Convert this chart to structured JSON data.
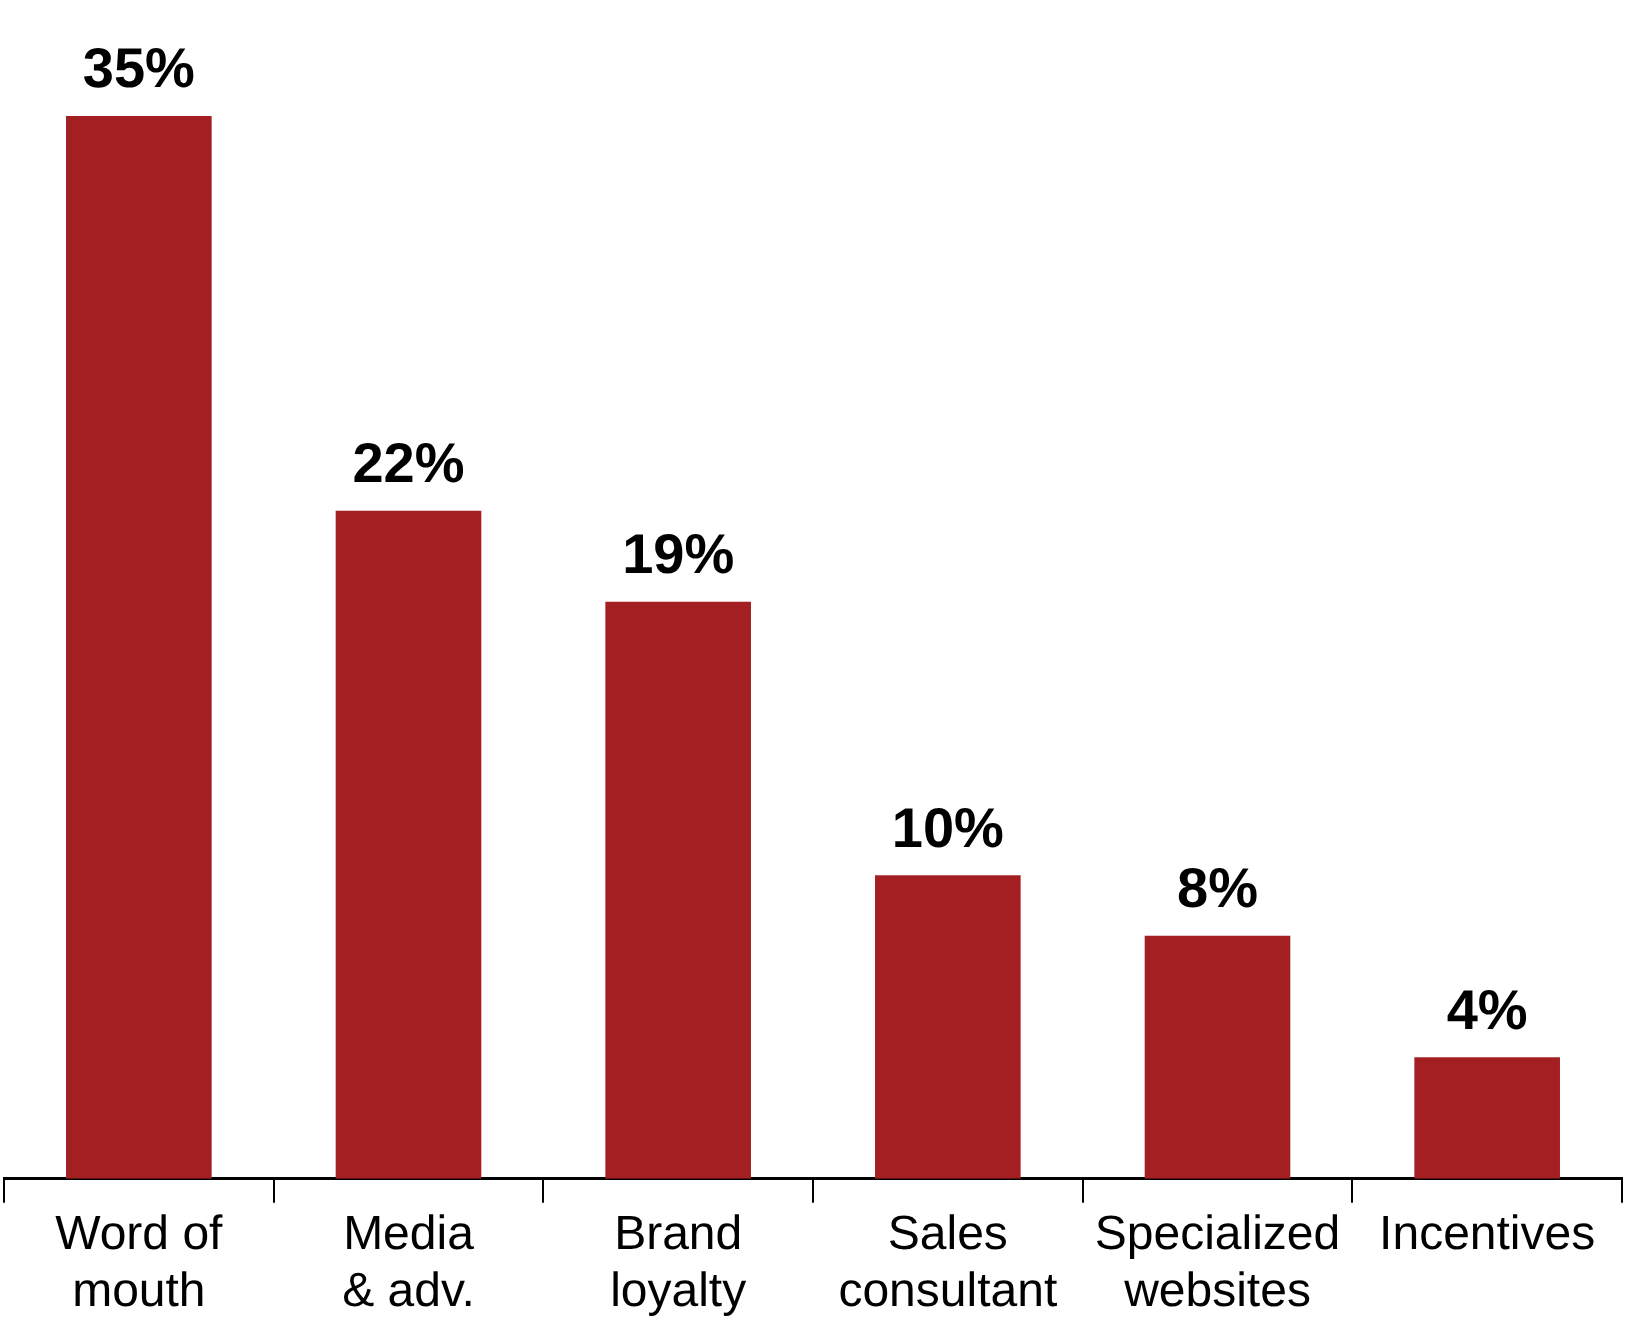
{
  "chart_data": {
    "type": "bar",
    "categories": [
      "Word of\nmouth",
      "Media\n& adv.",
      "Brand\nloyalty",
      "Sales\nconsultant",
      "Specialized\nwebsites",
      "Incentives"
    ],
    "values": [
      35,
      22,
      19,
      10,
      8,
      4
    ],
    "color": "#a31f22",
    "data_labels": true,
    "value_labels": [
      "35%",
      "22%",
      "19%",
      "10%",
      "8%",
      "4%"
    ],
    "grid": false,
    "legend": false
  }
}
